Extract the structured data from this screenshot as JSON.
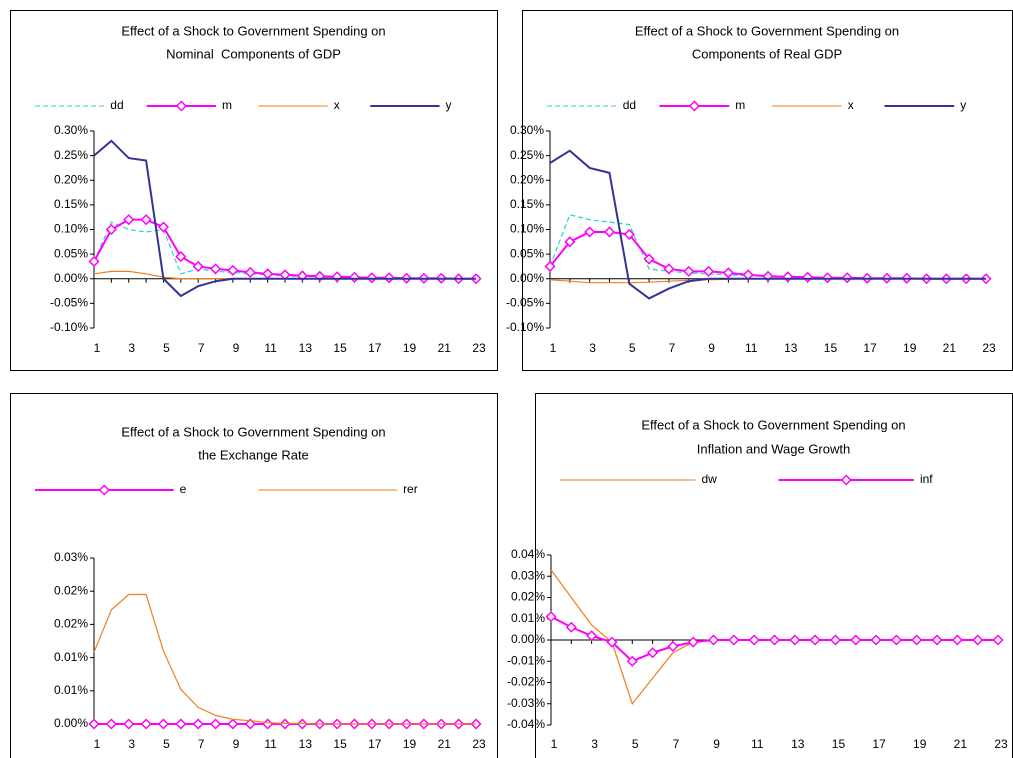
{
  "chart_data": [
    {
      "type": "line",
      "title": [
        "Effect of a Shock to Government Spending on",
        "Nominal  Components of GDP"
      ],
      "categories": [
        1,
        null,
        3,
        null,
        5,
        null,
        7,
        null,
        9,
        null,
        11,
        null,
        13,
        null,
        15,
        null,
        17,
        null,
        19,
        null,
        21,
        null,
        23
      ],
      "ylim": [
        -0.1,
        0.3
      ],
      "yticks": [
        {
          "value": 0.3,
          "label": "0.30%"
        },
        {
          "value": 0.25,
          "label": "0.25%"
        },
        {
          "value": 0.2,
          "label": "0.20%"
        },
        {
          "value": 0.15,
          "label": "0.15%"
        },
        {
          "value": 0.1,
          "label": "0.10%"
        },
        {
          "value": 0.05,
          "label": "0.05%"
        },
        {
          "value": 0,
          "label": "0.00%"
        },
        {
          "value": -0.05,
          "label": "-0.05%"
        },
        {
          "value": -0.1,
          "label": "-0.10%"
        }
      ],
      "grid": false,
      "series": [
        {
          "name": "dd",
          "color": "#33cccc",
          "dash": true,
          "marker": null,
          "values": [
            0.035,
            0.115,
            0.1,
            0.095,
            0.1,
            0.01,
            0.02,
            0.015,
            0.013,
            0.01,
            0.008,
            0.006,
            0.005,
            0.004,
            0.003,
            0.002,
            0.002,
            0.001,
            0.001,
            0.001,
            0,
            0,
            0
          ]
        },
        {
          "name": "m",
          "color": "#ff00ff",
          "dash": false,
          "marker": "diamond",
          "values": [
            0.035,
            0.1,
            0.12,
            0.12,
            0.105,
            0.045,
            0.025,
            0.02,
            0.017,
            0.013,
            0.01,
            0.008,
            0.006,
            0.005,
            0.004,
            0.003,
            0.002,
            0.002,
            0.001,
            0.001,
            0.001,
            0,
            0
          ]
        },
        {
          "name": "x",
          "color": "#f07f1e",
          "dash": false,
          "marker": null,
          "values": [
            0.01,
            0.015,
            0.015,
            0.01,
            0.003,
            0,
            0,
            0,
            0,
            0,
            0,
            0,
            0,
            0,
            0,
            0,
            0,
            0,
            0,
            0,
            0,
            0,
            0
          ]
        },
        {
          "name": "y",
          "color": "#333399",
          "dash": false,
          "marker": null,
          "values": [
            0.25,
            0.28,
            0.245,
            0.24,
            0,
            -0.035,
            -0.015,
            -0.005,
            0,
            0,
            0,
            0,
            0,
            0,
            0,
            0,
            0,
            0,
            0,
            0,
            0,
            0,
            0
          ]
        }
      ]
    },
    {
      "type": "line",
      "title": [
        "Effect of a Shock to Government Spending on",
        "Components of Real GDP"
      ],
      "categories": [
        1,
        null,
        3,
        null,
        5,
        null,
        7,
        null,
        9,
        null,
        11,
        null,
        13,
        null,
        15,
        null,
        17,
        null,
        19,
        null,
        21,
        null,
        23
      ],
      "ylim": [
        -0.1,
        0.3
      ],
      "yticks": [
        {
          "value": 0.3,
          "label": "0.30%"
        },
        {
          "value": 0.25,
          "label": "0.25%"
        },
        {
          "value": 0.2,
          "label": "0.20%"
        },
        {
          "value": 0.15,
          "label": "0.15%"
        },
        {
          "value": 0.1,
          "label": "0.10%"
        },
        {
          "value": 0.05,
          "label": "0.05%"
        },
        {
          "value": 0,
          "label": "0.00%"
        },
        {
          "value": -0.05,
          "label": "-0.05%"
        },
        {
          "value": -0.1,
          "label": "-0.10%"
        }
      ],
      "grid": false,
      "series": [
        {
          "name": "dd",
          "color": "#33cccc",
          "dash": true,
          "marker": null,
          "values": [
            0.025,
            0.13,
            0.12,
            0.115,
            0.11,
            0.02,
            0.015,
            0.012,
            0.01,
            0.008,
            0.006,
            0.005,
            0.004,
            0.003,
            0.002,
            0.002,
            0.001,
            0.001,
            0.001,
            0,
            0,
            0,
            0
          ]
        },
        {
          "name": "m",
          "color": "#ff00ff",
          "dash": false,
          "marker": "diamond",
          "values": [
            0.025,
            0.075,
            0.095,
            0.095,
            0.09,
            0.04,
            0.02,
            0.015,
            0.015,
            0.012,
            0.008,
            0.005,
            0.004,
            0.003,
            0.002,
            0.002,
            0.001,
            0.001,
            0.001,
            0,
            0,
            0,
            0
          ]
        },
        {
          "name": "x",
          "color": "#f07f1e",
          "dash": false,
          "marker": null,
          "values": [
            -0.002,
            -0.005,
            -0.008,
            -0.008,
            -0.008,
            -0.007,
            -0.005,
            -0.003,
            -0.002,
            -0.001,
            0,
            0,
            0,
            0,
            0,
            0,
            0,
            0,
            0,
            0,
            0,
            0,
            0
          ]
        },
        {
          "name": "y",
          "color": "#333399",
          "dash": false,
          "marker": null,
          "values": [
            0.235,
            0.26,
            0.225,
            0.215,
            -0.01,
            -0.04,
            -0.02,
            -0.005,
            0,
            0,
            0,
            0,
            0,
            0,
            0,
            0,
            0,
            0,
            0,
            0,
            0,
            0,
            0
          ]
        }
      ]
    },
    {
      "type": "line",
      "title": [
        "Effect of a Shock to Government Spending on",
        "the Exchange Rate"
      ],
      "categories": [
        1,
        null,
        3,
        null,
        5,
        null,
        7,
        null,
        9,
        null,
        11,
        null,
        13,
        null,
        15,
        null,
        17,
        null,
        19,
        null,
        21,
        null,
        23
      ],
      "ylim": [
        0,
        0.025
      ],
      "yticks": [
        {
          "value": 0.025,
          "label": "0.03%"
        },
        {
          "value": 0.02,
          "label": "0.02%"
        },
        {
          "value": 0.015,
          "label": "0.02%"
        },
        {
          "value": 0.01,
          "label": "0.01%"
        },
        {
          "value": 0.005,
          "label": "0.01%"
        },
        {
          "value": 0,
          "label": "0.00%"
        }
      ],
      "grid": false,
      "series": [
        {
          "name": "e",
          "color": "#ff00ff",
          "dash": false,
          "marker": "diamond",
          "values": [
            0,
            0,
            0,
            0,
            0,
            0,
            0,
            0,
            0,
            0,
            0,
            0,
            0,
            0,
            0,
            0,
            0,
            0,
            0,
            0,
            0,
            0,
            0
          ]
        },
        {
          "name": "rer",
          "color": "#f07f1e",
          "dash": false,
          "marker": null,
          "values": [
            0.0108,
            0.0172,
            0.0195,
            0.0195,
            0.011,
            0.0052,
            0.0025,
            0.0013,
            0.0007,
            0.0005,
            0.0002,
            0.0001,
            0.0001,
            0,
            0,
            0,
            0,
            0,
            0,
            0,
            0,
            0,
            0
          ]
        }
      ]
    },
    {
      "type": "line",
      "title": [
        "Effect of a Shock to Government Spending on",
        "Inflation and Wage Growth"
      ],
      "categories": [
        1,
        null,
        3,
        null,
        5,
        null,
        7,
        null,
        9,
        null,
        11,
        null,
        13,
        null,
        15,
        null,
        17,
        null,
        19,
        null,
        21,
        null,
        23
      ],
      "ylim": [
        -0.04,
        0.04
      ],
      "yticks": [
        {
          "value": 0.04,
          "label": "0.04%"
        },
        {
          "value": 0.03,
          "label": "0.03%"
        },
        {
          "value": 0.02,
          "label": "0.02%"
        },
        {
          "value": 0.01,
          "label": "0.01%"
        },
        {
          "value": 0,
          "label": "0.00%"
        },
        {
          "value": -0.01,
          "label": "-0.01%"
        },
        {
          "value": -0.02,
          "label": "-0.02%"
        },
        {
          "value": -0.03,
          "label": "-0.03%"
        },
        {
          "value": -0.04,
          "label": "-0.04%"
        }
      ],
      "grid": false,
      "series": [
        {
          "name": "dw",
          "color": "#f07f1e",
          "dash": false,
          "marker": null,
          "values": [
            0.033,
            0.02,
            0.007,
            -0.001,
            -0.03,
            -0.018,
            -0.006,
            -0.001,
            0,
            0,
            0,
            0,
            0,
            0,
            0,
            0,
            0,
            0,
            0,
            0,
            0,
            0,
            0
          ]
        },
        {
          "name": "inf",
          "color": "#ff00ff",
          "dash": false,
          "marker": "diamond",
          "values": [
            0.011,
            0.006,
            0.002,
            -0.001,
            -0.01,
            -0.006,
            -0.003,
            -0.001,
            0,
            0,
            0,
            0,
            0,
            0,
            0,
            0,
            0,
            0,
            0,
            0,
            0,
            0,
            0
          ]
        }
      ]
    }
  ]
}
